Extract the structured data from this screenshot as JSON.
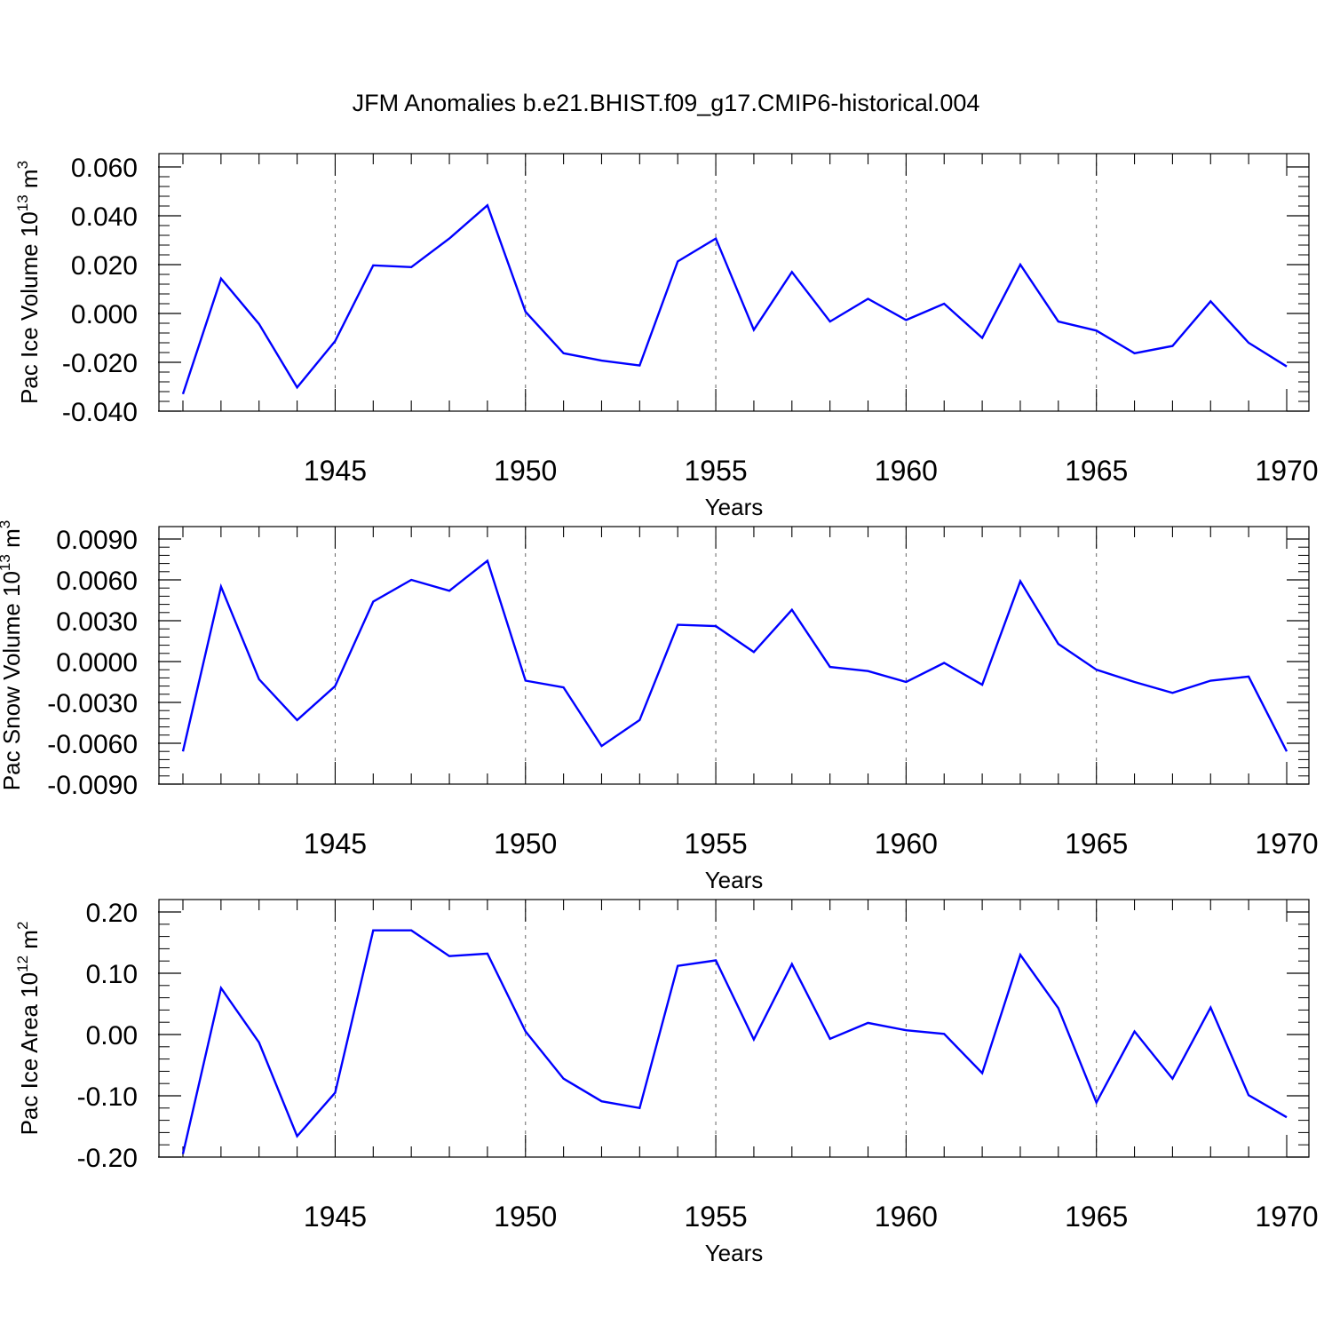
{
  "title": "JFM Anomalies b.e21.BHIST.f09_g17.CMIP6-historical.004",
  "chart_data": [
    {
      "type": "line",
      "ylabel": {
        "text": "Pac Ice Volume 10",
        "exp1": "13",
        "unit": " m",
        "exp2": "3"
      },
      "xlabel": "Years",
      "xlim": [
        1941,
        1970
      ],
      "ylim": [
        -0.04,
        0.06
      ],
      "yticks": [
        -0.04,
        -0.02,
        0.0,
        0.02,
        0.04,
        0.06
      ],
      "ytick_labels": [
        "-0.040",
        "-0.020",
        "0.000",
        "0.020",
        "0.040",
        "0.060"
      ],
      "xticks": [
        1945,
        1950,
        1955,
        1960,
        1965,
        1970
      ],
      "xtick_labels": [
        "1945",
        "1950",
        "1955",
        "1960",
        "1965",
        "1970"
      ],
      "grid": "vertical dashed at labeled years",
      "series": [
        {
          "name": "Pac Ice Volume",
          "color": "#0000ff",
          "x": [
            1941,
            1942,
            1943,
            1944,
            1945,
            1946,
            1947,
            1948,
            1949,
            1950,
            1951,
            1952,
            1953,
            1954,
            1955,
            1956,
            1957,
            1958,
            1959,
            1960,
            1961,
            1962,
            1963,
            1964,
            1965,
            1966,
            1967,
            1968,
            1969,
            1970
          ],
          "values": [
            -0.033,
            0.0143,
            -0.0043,
            -0.0303,
            -0.0113,
            0.0197,
            0.019,
            0.0307,
            0.0443,
            0.0007,
            -0.0163,
            -0.0193,
            -0.0213,
            0.0213,
            0.0307,
            -0.0067,
            0.017,
            -0.0033,
            0.006,
            -0.0027,
            0.004,
            -0.01,
            0.02,
            -0.0033,
            -0.007,
            -0.0163,
            -0.0133,
            0.005,
            -0.012,
            -0.0217
          ]
        }
      ]
    },
    {
      "type": "line",
      "ylabel": {
        "text": "Pac Snow Volume 10",
        "exp1": "13",
        "unit": " m",
        "exp2": "3"
      },
      "xlabel": "Years",
      "xlim": [
        1941,
        1970
      ],
      "ylim": [
        -0.009,
        0.009
      ],
      "yticks": [
        -0.009,
        -0.006,
        -0.003,
        0.0,
        0.003,
        0.006,
        0.009
      ],
      "ytick_labels": [
        "-0.0090",
        "-0.0060",
        "-0.0030",
        "0.0000",
        "0.0030",
        "0.0060",
        "0.0090"
      ],
      "xticks": [
        1945,
        1950,
        1955,
        1960,
        1965,
        1970
      ],
      "xtick_labels": [
        "1945",
        "1950",
        "1955",
        "1960",
        "1965",
        "1970"
      ],
      "grid": "vertical dashed at labeled years",
      "series": [
        {
          "name": "Pac Snow Volume",
          "color": "#0000ff",
          "x": [
            1941,
            1942,
            1943,
            1944,
            1945,
            1946,
            1947,
            1948,
            1949,
            1950,
            1951,
            1952,
            1953,
            1954,
            1955,
            1956,
            1957,
            1958,
            1959,
            1960,
            1961,
            1962,
            1963,
            1964,
            1965,
            1966,
            1967,
            1968,
            1969,
            1970
          ],
          "values": [
            -0.0066,
            0.0055,
            -0.0013,
            -0.0043,
            -0.0018,
            0.0044,
            0.006,
            0.0052,
            0.0074,
            -0.0014,
            -0.0019,
            -0.0062,
            -0.0043,
            0.0027,
            0.0026,
            0.0007,
            0.0038,
            -0.0004,
            -0.0007,
            -0.0015,
            -0.0001,
            -0.0017,
            0.0059,
            0.0013,
            -0.0006,
            -0.0015,
            -0.0023,
            -0.0014,
            -0.0011,
            -0.0066
          ]
        }
      ]
    },
    {
      "type": "line",
      "ylabel": {
        "text": "Pac Ice Area 10",
        "exp1": "12",
        "unit": " m",
        "exp2": "2"
      },
      "xlabel": "Years",
      "xlim": [
        1941,
        1970
      ],
      "ylim": [
        -0.2,
        0.2
      ],
      "yticks": [
        -0.2,
        -0.1,
        0.0,
        0.1,
        0.2
      ],
      "ytick_labels": [
        "-0.20",
        "-0.10",
        "0.00",
        "0.10",
        "0.20"
      ],
      "xticks": [
        1945,
        1950,
        1955,
        1960,
        1965,
        1970
      ],
      "xtick_labels": [
        "1945",
        "1950",
        "1955",
        "1960",
        "1965",
        "1970"
      ],
      "grid": "vertical dashed at labeled years",
      "series": [
        {
          "name": "Pac Ice Area",
          "color": "#0000ff",
          "x": [
            1941,
            1942,
            1943,
            1944,
            1945,
            1946,
            1947,
            1948,
            1949,
            1950,
            1951,
            1952,
            1953,
            1954,
            1955,
            1956,
            1957,
            1958,
            1959,
            1960,
            1961,
            1962,
            1963,
            1964,
            1965,
            1966,
            1967,
            1968,
            1969,
            1970
          ],
          "values": [
            -0.195,
            0.076,
            -0.013,
            -0.166,
            -0.095,
            0.17,
            0.17,
            0.128,
            0.132,
            0.005,
            -0.072,
            -0.109,
            -0.12,
            0.112,
            0.121,
            -0.008,
            0.115,
            -0.007,
            0.019,
            0.007,
            0.001,
            -0.063,
            0.13,
            0.043,
            -0.111,
            0.005,
            -0.072,
            0.044,
            -0.099,
            -0.135
          ]
        }
      ]
    }
  ]
}
